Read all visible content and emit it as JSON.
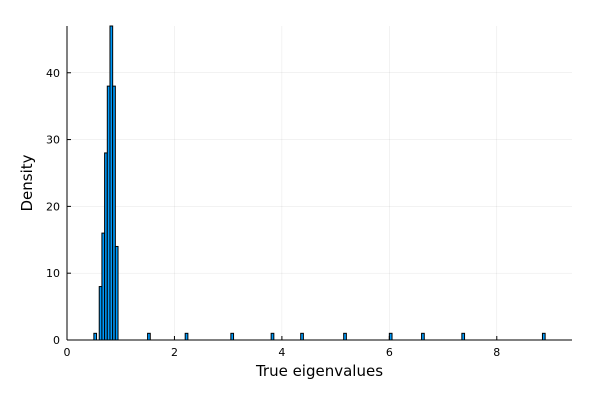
{
  "chart_data": {
    "type": "bar",
    "title": "",
    "xlabel": "True eigenvalues",
    "ylabel": "Density",
    "xlim": [
      0,
      9.4
    ],
    "ylim": [
      0,
      47
    ],
    "xticks": [
      0,
      2,
      4,
      6,
      8
    ],
    "yticks": [
      0,
      10,
      20,
      30,
      40
    ],
    "grid": true,
    "legend": "none",
    "bar_color": "#009AFA",
    "bin_width": 0.05,
    "bins": [
      {
        "x0": 0.5,
        "x1": 0.55,
        "value": 1
      },
      {
        "x0": 0.6,
        "x1": 0.65,
        "value": 8
      },
      {
        "x0": 0.65,
        "x1": 0.7,
        "value": 16
      },
      {
        "x0": 0.7,
        "x1": 0.75,
        "value": 28
      },
      {
        "x0": 0.75,
        "x1": 0.8,
        "value": 38
      },
      {
        "x0": 0.8,
        "x1": 0.85,
        "value": 47
      },
      {
        "x0": 0.85,
        "x1": 0.9,
        "value": 38
      },
      {
        "x0": 0.9,
        "x1": 0.95,
        "value": 14
      },
      {
        "x0": 1.5,
        "x1": 1.55,
        "value": 1
      },
      {
        "x0": 2.2,
        "x1": 2.25,
        "value": 1
      },
      {
        "x0": 3.05,
        "x1": 3.1,
        "value": 1
      },
      {
        "x0": 3.8,
        "x1": 3.85,
        "value": 1
      },
      {
        "x0": 4.35,
        "x1": 4.4,
        "value": 1
      },
      {
        "x0": 5.15,
        "x1": 5.2,
        "value": 1
      },
      {
        "x0": 6.0,
        "x1": 6.05,
        "value": 1
      },
      {
        "x0": 6.6,
        "x1": 6.65,
        "value": 1
      },
      {
        "x0": 7.35,
        "x1": 7.4,
        "value": 1
      },
      {
        "x0": 8.85,
        "x1": 8.9,
        "value": 1
      }
    ]
  }
}
